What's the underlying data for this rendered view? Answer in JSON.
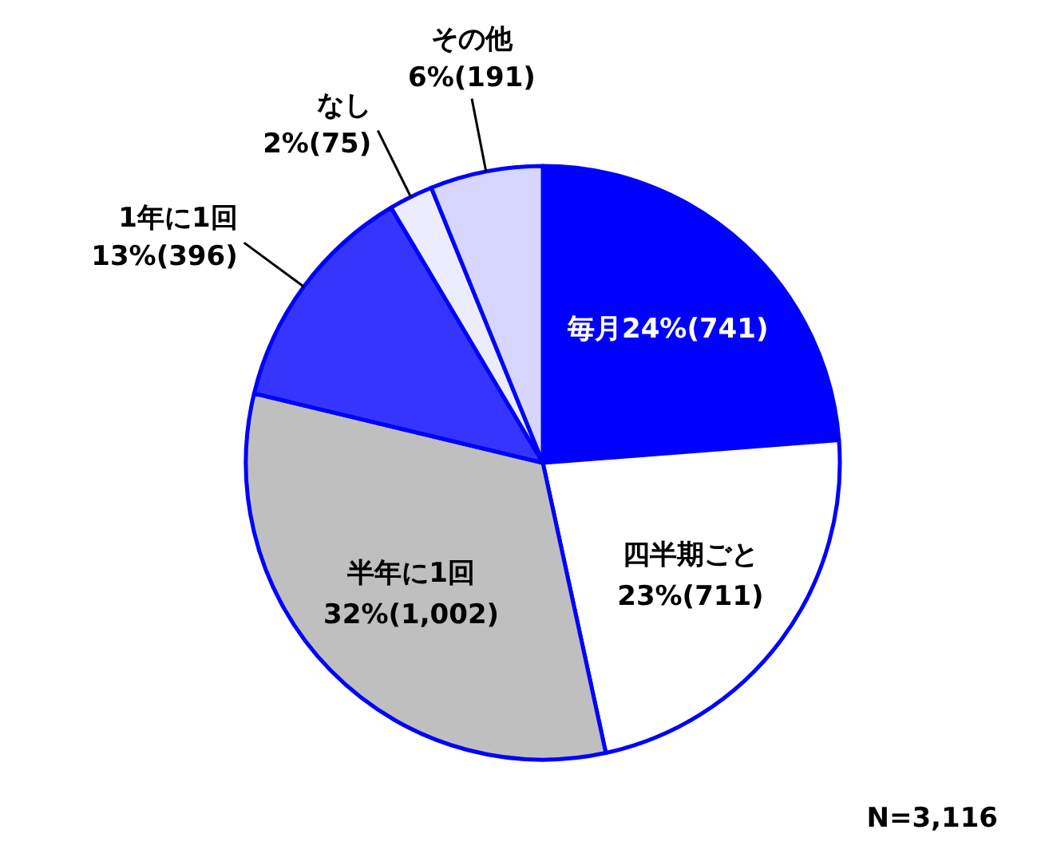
{
  "chart_data": {
    "type": "pie",
    "categories": [
      "毎月",
      "四半期ごと",
      "半年に1回",
      "1年に1回",
      "なし",
      "その他"
    ],
    "values": [
      741,
      711,
      1002,
      396,
      75,
      191
    ],
    "value_labels": [
      "24%(741)",
      "23%(711)",
      "32%(1,002)",
      "13%(396)",
      "2%(75)",
      "6%(191)"
    ],
    "colors": [
      "#0000ff",
      "#ffffff",
      "#bfbfbf",
      "#3535ff",
      "#ececff",
      "#d6d6ff"
    ],
    "annotations": [
      "N=3,116"
    ]
  }
}
